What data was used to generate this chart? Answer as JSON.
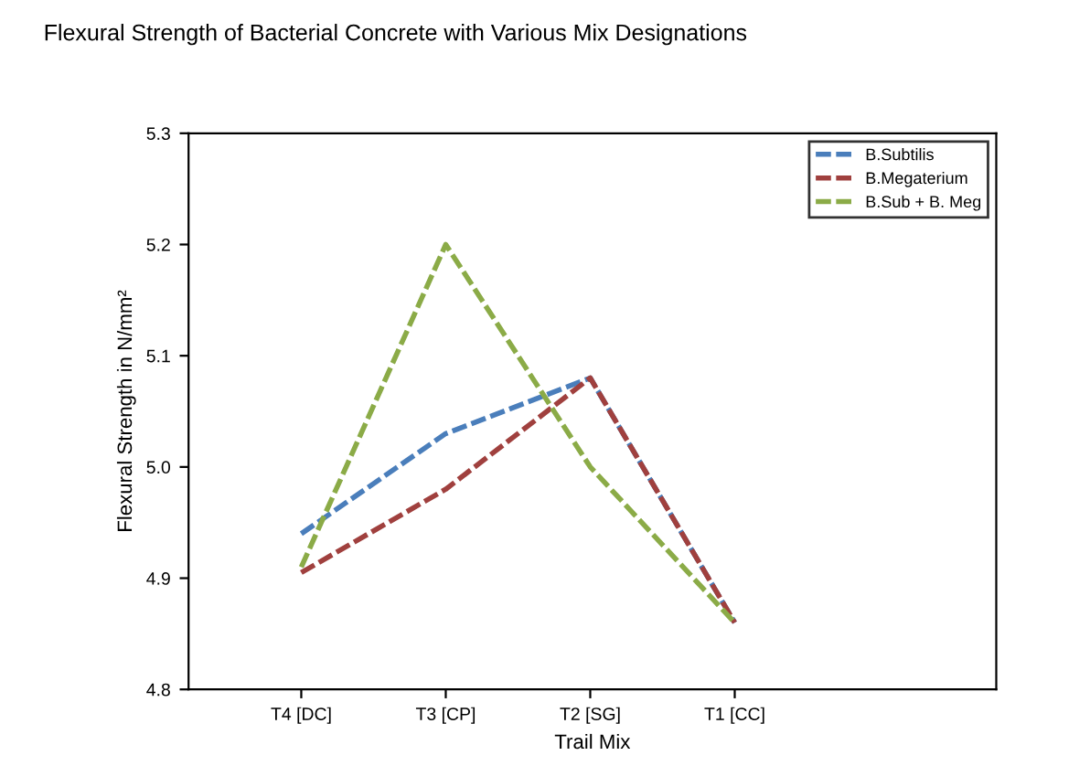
{
  "chart_data": {
    "type": "line",
    "title": "Flexural Strength of Bacterial Concrete with Various Mix Designations",
    "xlabel": "Trail Mix",
    "ylabel": "Flexural Strength in N/mm²",
    "categories": [
      "T4 [DC]",
      "T3 [CP]",
      "T2 [SG]",
      "T1 [CC]"
    ],
    "series": [
      {
        "name": "B.Subtilis",
        "color": "#4a7ebb",
        "values": [
          4.94,
          5.03,
          5.08,
          4.86
        ]
      },
      {
        "name": "B.Megaterium",
        "color": "#a0403e",
        "values": [
          4.905,
          4.98,
          5.08,
          4.86
        ]
      },
      {
        "name": "B.Sub + B. Meg",
        "color": "#8bab47",
        "values": [
          4.91,
          5.2,
          5.0,
          4.86
        ]
      }
    ],
    "ylim": [
      4.8,
      5.3
    ],
    "yticks": [
      4.8,
      4.9,
      {
        "value": 5.0,
        "label": "5.0"
      },
      5.1,
      5.2,
      5.3
    ],
    "legend": "top right",
    "line_style": "dashed",
    "marker": "none",
    "grid": false
  }
}
